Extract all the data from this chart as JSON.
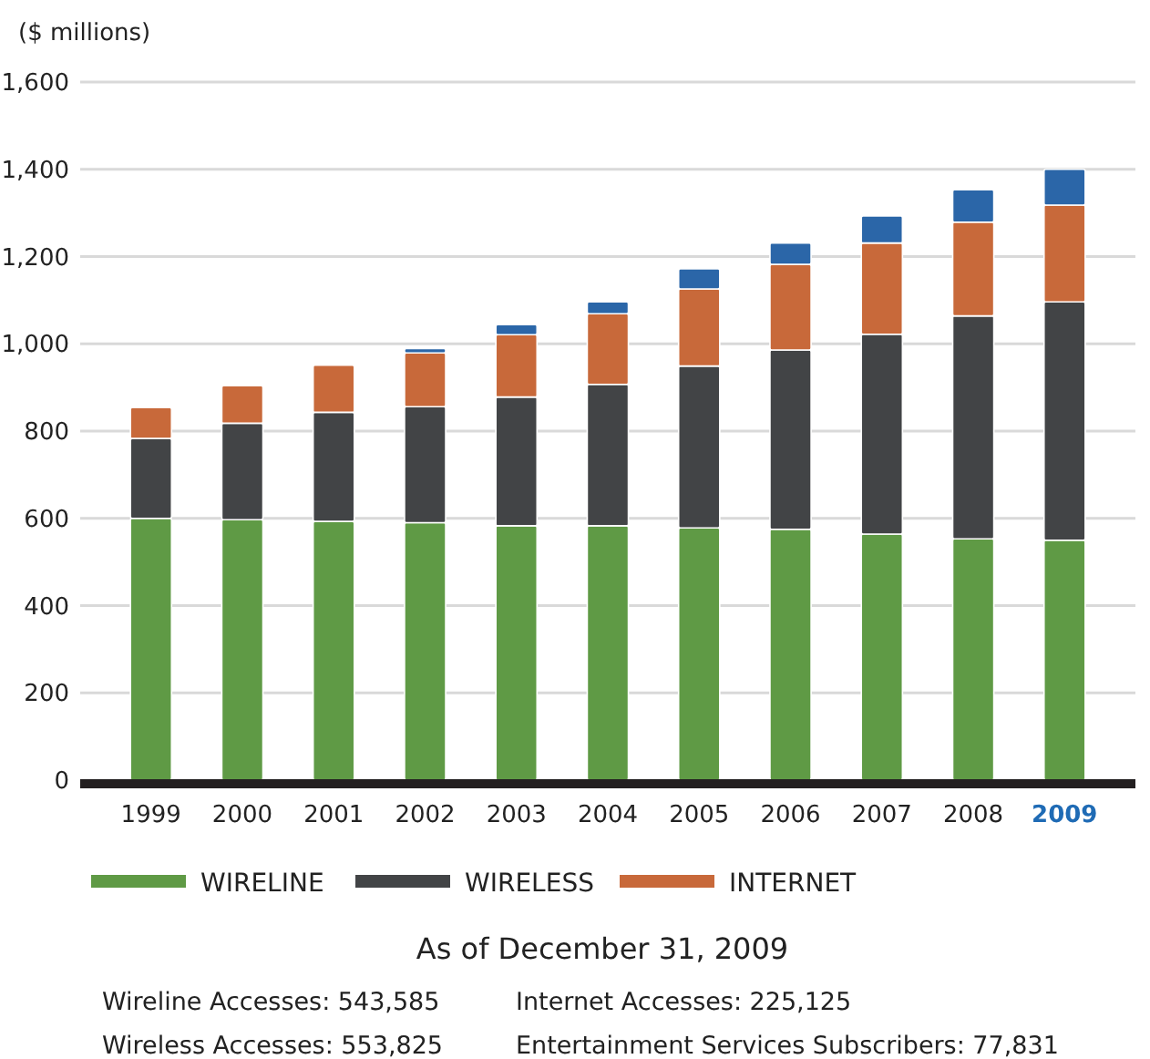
{
  "chart_data": {
    "type": "bar",
    "stacked": true,
    "ylabel": "($ millions)",
    "categories": [
      "1999",
      "2000",
      "2001",
      "2002",
      "2003",
      "2004",
      "2005",
      "2006",
      "2007",
      "2008",
      "2009"
    ],
    "series": [
      {
        "name": "WIRELINE",
        "color": "#5f9a45",
        "values": [
          600,
          597,
          593,
          590,
          583,
          583,
          578,
          575,
          564,
          553,
          550
        ]
      },
      {
        "name": "WIRELESS",
        "color": "#424446",
        "values": [
          183,
          221,
          250,
          266,
          295,
          324,
          371,
          411,
          458,
          511,
          546
        ]
      },
      {
        "name": "INTERNET",
        "color": "#c8693a",
        "values": [
          71,
          86,
          108,
          123,
          143,
          162,
          177,
          196,
          209,
          215,
          222
        ]
      },
      {
        "color": "#2b66a8",
        "values": [
          null,
          null,
          null,
          10,
          23,
          27,
          46,
          49,
          62,
          74,
          82
        ]
      }
    ],
    "ylim": [
      0,
      1600
    ],
    "yticks": [
      0,
      {
        "value": 200,
        "label": "200"
      },
      {
        "value": 400,
        "label": "400"
      },
      {
        "value": 600,
        "label": "600"
      },
      {
        "value": 800,
        "label": "800"
      },
      {
        "value": 1000,
        "label": "1,000"
      },
      {
        "value": 1200,
        "label": "1,200"
      },
      {
        "value": 1400,
        "label": "1,400"
      },
      {
        "value": 1600,
        "label": "1,600"
      }
    ],
    "grid": "y",
    "legend": "bottom",
    "annotations": [
      "As of December 31, 2009",
      "Wireline Accesses: 543,585",
      "Internet Accesses: 225,125",
      "Wireless Accesses: 553,825",
      "Entertainment Services Subscribers: 77,831"
    ]
  }
}
